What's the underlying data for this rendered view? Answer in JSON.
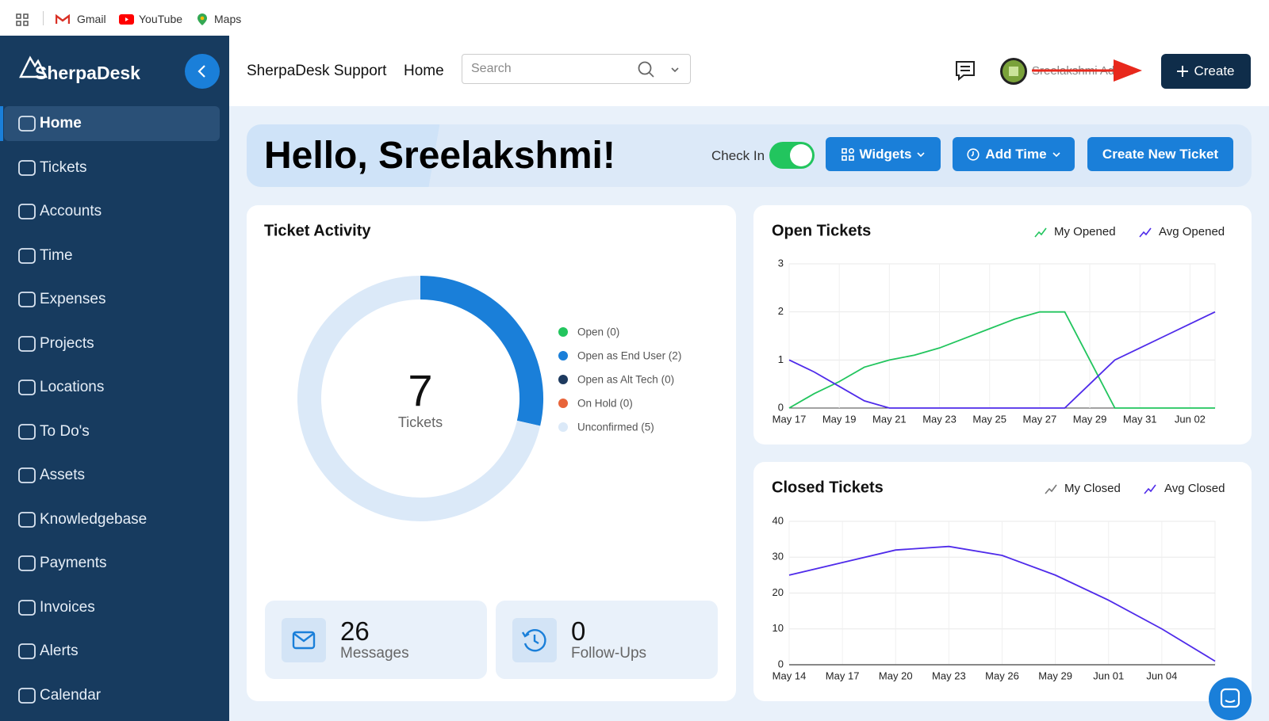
{
  "browser_bar": {
    "bookmarks": [
      "Gmail",
      "YouTube",
      "Maps"
    ]
  },
  "sidebar": {
    "logo": "SherpaDesk",
    "items": [
      "Home",
      "Tickets",
      "Accounts",
      "Time",
      "Expenses",
      "Projects",
      "Locations",
      "To Do's",
      "Assets",
      "Knowledgebase",
      "Payments",
      "Invoices",
      "Alerts",
      "Calendar"
    ]
  },
  "header": {
    "org": "SherpaDesk Support",
    "page": "Home",
    "search_placeholder": "Search",
    "user": "Sreelakshmi Admin",
    "create": "Create"
  },
  "banner": {
    "greeting": "Hello, Sreelakshmi!",
    "check_in": "Check In",
    "widgets": "Widgets",
    "add_time": "Add Time",
    "new_ticket": "Create New Ticket"
  },
  "stats": [
    {
      "value": 26,
      "label": "Messages"
    },
    {
      "value": 0,
      "label": "Follow-Ups"
    }
  ],
  "chart_data": [
    {
      "type": "donut",
      "title": "Ticket Activity",
      "categories": [
        "Open (0)",
        "Open as End User (2)",
        "Open as Alt Tech (0)",
        "On Hold (0)",
        "Unconfirmed (5)"
      ],
      "values": [
        0,
        2,
        0,
        0,
        5
      ],
      "colors": [
        "#22c55e",
        "#1a7fd9",
        "#1e3a5f",
        "#e8643a",
        "#dbe9f8"
      ],
      "center_value": 7,
      "center_label": "Tickets"
    },
    {
      "type": "line",
      "title": "Open Tickets",
      "categories": [
        "May 17",
        null,
        "May 19",
        null,
        "May 21",
        null,
        "May 23",
        null,
        "May 25",
        null,
        "May 27",
        null,
        "May 29",
        null,
        "May 31",
        null,
        "Jun 02",
        null
      ],
      "series": [
        {
          "name": "My Opened",
          "color": "#22c55e",
          "values": [
            0,
            0.3,
            0.55,
            0.85,
            1.0,
            1.1,
            1.25,
            1.45,
            1.65,
            1.85,
            2.0,
            2.0,
            1.0,
            0,
            0,
            0,
            0,
            0
          ]
        },
        {
          "name": "Avg Opened",
          "color": "#4f2bea",
          "values": [
            1.0,
            0.75,
            0.45,
            0.15,
            0,
            0,
            0,
            0,
            0,
            0,
            0,
            0,
            0.5,
            1.0,
            1.25,
            1.5,
            1.75,
            2.0
          ]
        }
      ],
      "ylim": [
        0,
        3
      ],
      "yticks": [
        0,
        1,
        2,
        3
      ],
      "grid": true
    },
    {
      "type": "line",
      "title": "Closed Tickets",
      "categories": [
        "May 14",
        "May 17",
        "May 20",
        "May 23",
        "May 26",
        "May 29",
        "Jun 01",
        "Jun 04",
        null
      ],
      "series": [
        {
          "name": "My Closed",
          "color": "#777777",
          "values": [
            0,
            0,
            0,
            0,
            0,
            0,
            0,
            0,
            0
          ]
        },
        {
          "name": "Avg Closed",
          "color": "#4f2bea",
          "values": [
            25,
            28.5,
            32,
            33,
            30.5,
            25,
            18,
            10,
            1
          ]
        }
      ],
      "ylim": [
        0,
        40
      ],
      "yticks": [
        0,
        10,
        20,
        30,
        40
      ],
      "grid": true
    }
  ]
}
